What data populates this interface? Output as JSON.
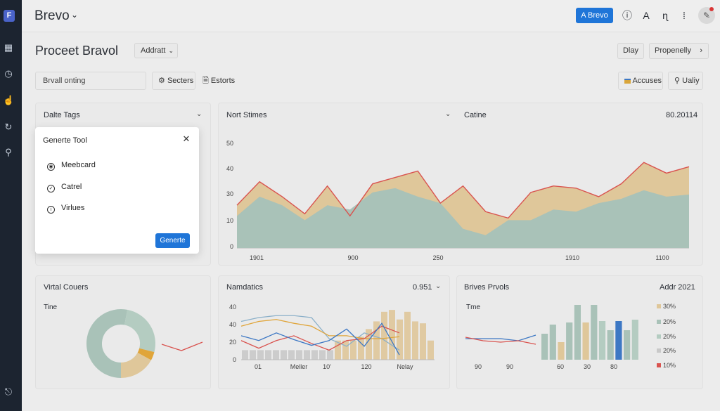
{
  "sidebar": {
    "logo": "F",
    "icons": [
      "activity-icon",
      "clock-icon",
      "thumb-icon",
      "refresh-icon",
      "link-icon",
      "exit-icon"
    ]
  },
  "header": {
    "brand": "Brevo",
    "primary_button": "A Brevo",
    "letter_icon": "A",
    "icons": [
      "info-icon",
      "font-icon",
      "chart-type-icon",
      "more-icon",
      "edit-avatar-icon"
    ]
  },
  "title_row": {
    "page_title": "Proceet Bravol",
    "select_value": "Addratt",
    "btn_day": "Dlay",
    "btn_property": "Propenelly"
  },
  "toolbar": {
    "search_value": "Brvall onting",
    "sectors_label": "Secters",
    "exports_label": "Estorts",
    "accuses_label": "Accuses",
    "uality_label": "Ualiy"
  },
  "panels": {
    "tags": {
      "title": "Dalte Tags"
    },
    "north": {
      "title": "Nort Stimes"
    },
    "catine": {
      "title": "Catine",
      "meta": "80.20114"
    },
    "vital": {
      "title": "Virtal Couers",
      "sub": "Tine"
    },
    "namdatics": {
      "title": "Namdatics",
      "meta": "0.951"
    },
    "brives": {
      "title": "Brives Prvols",
      "meta": "Addr 2021",
      "sub": "Tme"
    }
  },
  "modal": {
    "title": "Generte Tool",
    "items": [
      "Meebcard",
      "Catrel",
      "Virlues"
    ],
    "button": "Generte"
  },
  "colors": {
    "accent": "#1f75d8",
    "area_teal": "#a9c2b8",
    "area_tan": "#dfc79a",
    "line_red": "#d9534f",
    "line_blue": "#3d78c4",
    "sidebar": "#1c2430"
  },
  "chart_data": [
    {
      "type": "area",
      "yticks": [
        "50",
        "40",
        "30",
        "10",
        "0"
      ],
      "xticks": [
        "1901",
        "900",
        "250",
        "1910",
        "1100"
      ],
      "series": [
        {
          "values": [
            15,
            24,
            20,
            13,
            20,
            18,
            26,
            28,
            24,
            21,
            9,
            6,
            13,
            13,
            18,
            17,
            21,
            23,
            27,
            24,
            25
          ]
        },
        {
          "values": [
            20,
            31,
            24,
            16,
            29,
            15,
            30,
            33,
            36,
            21,
            29,
            17,
            14,
            26,
            29,
            28,
            24,
            30,
            40,
            35,
            38
          ]
        }
      ]
    },
    {
      "type": "pie",
      "values": [
        53,
        26,
        4,
        17
      ]
    },
    {
      "type": "bar",
      "yticks": [
        "40",
        "40",
        "20",
        "0"
      ],
      "xticks": [
        "01",
        "Meller",
        "10'",
        "120",
        "Nelay"
      ],
      "values": [
        10,
        10,
        10,
        10,
        10,
        10,
        10,
        10,
        10,
        10,
        10,
        10,
        20,
        20,
        20,
        24,
        32,
        40,
        50,
        52,
        42,
        50,
        40,
        38,
        20
      ]
    },
    {
      "type": "line",
      "series": [
        {
          "values": [
            40,
            44,
            46,
            46,
            44,
            22,
            14,
            28,
            22,
            10
          ]
        },
        {
          "values": [
            35,
            40,
            42,
            38,
            35,
            25,
            25,
            22,
            22,
            24
          ]
        },
        {
          "values": [
            20,
            12,
            20,
            25,
            17,
            10,
            20,
            22,
            35,
            28
          ]
        },
        {
          "values": [
            25,
            20,
            28,
            21,
            15,
            20,
            32,
            14,
            38,
            5
          ]
        }
      ]
    },
    {
      "type": "bar",
      "xticks": [
        "90",
        "90",
        "60",
        "30",
        "80"
      ],
      "values": [
        37,
        50,
        25,
        53,
        78,
        53,
        78,
        55,
        42,
        55,
        42,
        57
      ],
      "highlight_index": 9
    },
    {
      "type": "line",
      "series": [
        {
          "values": [
            28,
            28,
            28,
            25,
            33
          ]
        },
        {
          "values": [
            30,
            25,
            23,
            25,
            20
          ]
        }
      ]
    },
    {
      "type": "table",
      "legend": [
        "30%",
        "20%",
        "20%",
        "20%",
        "10%"
      ]
    }
  ]
}
